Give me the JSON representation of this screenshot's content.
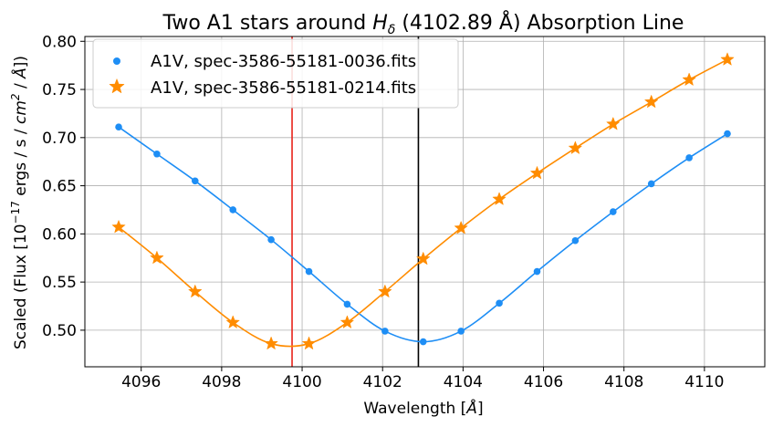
{
  "chart_data": {
    "type": "line",
    "title": "Two A1 stars around H_δ (4102.89 Å) Absorption Line",
    "title_parts": {
      "prefix": "Two A1 stars around ",
      "symbol": "H",
      "subscript": "δ",
      "suffix": " (4102.89 Å) Absorption Line"
    },
    "xlabel": "Wavelength [Å]",
    "ylabel": "Scaled (Flux [10^-17 ergs / s / cm^2 / Å])",
    "ylabel_parts": {
      "a": "Scaled (Flux [10",
      "exp1": "−17",
      "b": " ergs / s / ",
      "c": "cm",
      "exp2": "2",
      "d": " / ",
      "e": "Å",
      "f": "])"
    },
    "xlim": [
      4094.6,
      4111.5
    ],
    "ylim": [
      0.462,
      0.805
    ],
    "x_ticks": [
      4096,
      4098,
      4100,
      4102,
      4104,
      4106,
      4108,
      4110
    ],
    "y_ticks": [
      0.5,
      0.55,
      0.6,
      0.65,
      0.7,
      0.75,
      0.8
    ],
    "x_tick_labels": [
      "4096",
      "4098",
      "4100",
      "4102",
      "4104",
      "4106",
      "4108",
      "4110"
    ],
    "y_tick_labels": [
      "0.50",
      "0.55",
      "0.60",
      "0.65",
      "0.70",
      "0.75",
      "0.80"
    ],
    "grid": true,
    "legend_position": "top-left",
    "vertical_lines": [
      {
        "x": 4099.75,
        "color": "#e8231b"
      },
      {
        "x": 4102.89,
        "color": "#000000"
      }
    ],
    "series": [
      {
        "name": "A1V, spec-3586-55181-0036.fits",
        "color": "#1e8ef5",
        "marker": "circle",
        "x": [
          4095.44,
          4096.39,
          4097.34,
          4098.28,
          4099.23,
          4100.17,
          4101.12,
          4102.06,
          4103.01,
          4103.95,
          4104.9,
          4105.84,
          4106.79,
          4107.73,
          4108.68,
          4109.62,
          4110.57
        ],
        "values": [
          0.711,
          0.683,
          0.655,
          0.625,
          0.594,
          0.561,
          0.527,
          0.499,
          0.488,
          0.499,
          0.528,
          0.561,
          0.593,
          0.623,
          0.652,
          0.679,
          0.704
        ]
      },
      {
        "name": "A1V, spec-3586-55181-0214.fits",
        "color": "#ff8c00",
        "marker": "star",
        "x": [
          4095.44,
          4096.39,
          4097.34,
          4098.28,
          4099.23,
          4100.17,
          4101.12,
          4102.06,
          4103.01,
          4103.95,
          4104.9,
          4105.84,
          4106.79,
          4107.73,
          4108.68,
          4109.62,
          4110.57
        ],
        "values": [
          0.607,
          0.575,
          0.54,
          0.508,
          0.486,
          0.486,
          0.508,
          0.54,
          0.574,
          0.606,
          0.636,
          0.663,
          0.689,
          0.714,
          0.737,
          0.76,
          0.781
        ]
      }
    ]
  }
}
